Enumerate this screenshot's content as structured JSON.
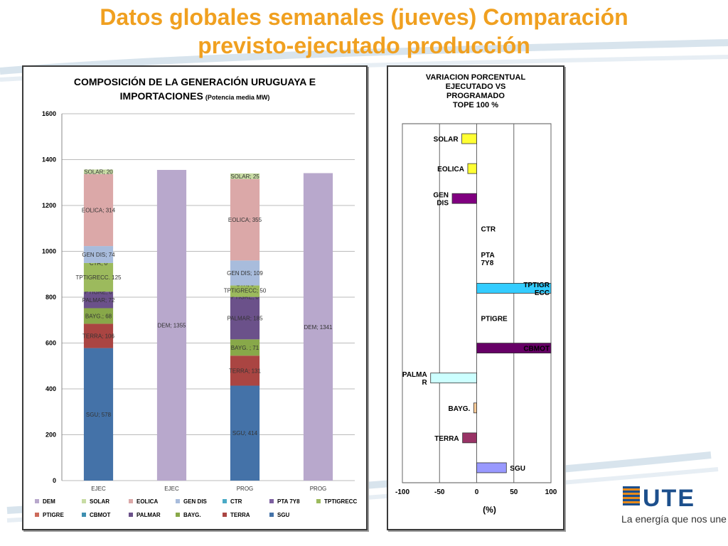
{
  "slide": {
    "title_line1": "Datos globales semanales  (jueves) Comparación",
    "title_line2": "previsto-ejecutado producción",
    "tagline": "La energía que nos une",
    "logo_text": "UTE",
    "colors": {
      "title": "#f0a020",
      "logo_blue": "#1c4f8c",
      "logo_orange": "#e88a1a"
    }
  },
  "chart_data": [
    {
      "type": "bar",
      "stacked": true,
      "title_line1": "COMPOSICIÓN DE LA GENERACIÓN URUGUAYA E",
      "title_line2_main": "IMPORTACIONES",
      "title_line2_sub": "(Potencia media MW)",
      "categories": [
        "EJEC",
        "EJEC",
        "PROG",
        "PROG"
      ],
      "ylim": [
        0,
        1600
      ],
      "yticks": [
        0,
        200,
        400,
        600,
        800,
        1000,
        1200,
        1400,
        1600
      ],
      "grid": true,
      "legend_position": "bottom",
      "series": [
        {
          "name": "SGU",
          "color": "#4472a8",
          "values": [
            578,
            null,
            414,
            null
          ],
          "labels": [
            "SGU; 578",
            null,
            "SGU; 414",
            null
          ]
        },
        {
          "name": "TERRA",
          "color": "#aa4542",
          "values": [
            106,
            null,
            131,
            null
          ],
          "labels": [
            "TERRA; 106",
            null,
            "TERRA; 131",
            null
          ]
        },
        {
          "name": "BAYG.",
          "color": "#88a849",
          "values": [
            68,
            null,
            71,
            null
          ],
          "labels": [
            "BAYG.; 68",
            null,
            "BAYG. ; 71",
            null
          ]
        },
        {
          "name": "PALMAR",
          "color": "#6b518a",
          "values": [
            72,
            null,
            185,
            null
          ],
          "labels": [
            "PALMAR; 72",
            null,
            "PALMAR; 185",
            null
          ]
        },
        {
          "name": "CBMOT",
          "color": "#3e8fb0",
          "values": [
            0,
            null,
            0,
            null
          ],
          "labels": [
            null,
            null,
            null,
            null
          ]
        },
        {
          "name": "PTIGRE",
          "color": "#cc6a5a",
          "values": [
            0,
            null,
            0,
            null
          ],
          "labels": [
            "PTIGRE; 0",
            null,
            "PTIGRE; 0",
            null
          ]
        },
        {
          "name": "TPTIGRECC",
          "color": "#9cba5d",
          "values": [
            125,
            null,
            50,
            null
          ],
          "labels": [
            "TPTIGRECC. 125",
            null,
            "TPTIGRECC; 50",
            null
          ]
        },
        {
          "name": "PTA 7Y8",
          "color": "#7d60a0",
          "values": [
            0,
            null,
            0,
            null
          ],
          "labels": [
            null,
            null,
            null,
            null
          ]
        },
        {
          "name": "CTR",
          "color": "#4aaac6",
          "values": [
            0,
            null,
            0,
            null
          ],
          "labels": [
            "CTR; 0",
            null,
            "CTR; 0",
            null
          ]
        },
        {
          "name": "GEN DIS",
          "color": "#a8bcdc",
          "values": [
            74,
            null,
            109,
            null
          ],
          "labels": [
            "GEN DIS; 74",
            null,
            "GEN DIS; 109",
            null
          ]
        },
        {
          "name": "EOLICA",
          "color": "#dba8a8",
          "values": [
            314,
            null,
            355,
            null
          ],
          "labels": [
            "EOLICA; 314",
            null,
            "EOLICA; 355",
            null
          ]
        },
        {
          "name": "SOLAR",
          "color": "#c8dca4",
          "values": [
            20,
            null,
            25,
            null
          ],
          "labels": [
            "SOLAR; 20",
            null,
            "SOLAR; 25",
            null
          ]
        },
        {
          "name": "DEM",
          "color": "#b8a8cc",
          "values": [
            null,
            1355,
            null,
            1341
          ],
          "labels": [
            null,
            "DEM; 1355",
            null,
            "DEM; 1341"
          ]
        }
      ],
      "legend_order": [
        "DEM",
        "SOLAR",
        "EOLICA",
        "GEN DIS",
        "CTR",
        "PTA 7Y8",
        "TPTIGRECC",
        "PTIGRE",
        "CBMOT",
        "PALMAR",
        "BAYG.",
        "TERRA",
        "SGU"
      ]
    },
    {
      "type": "bar",
      "orientation": "horizontal",
      "title": [
        "VARIACION  PORCENTUAL",
        "EJECUTADO VS",
        "PROGRAMADO",
        "TOPE 100 %"
      ],
      "xlabel": "(%)",
      "xlim": [
        -100,
        100
      ],
      "xticks": [
        -100,
        -50,
        0,
        50,
        100
      ],
      "grid": true,
      "categories": [
        {
          "name": "SOLAR",
          "label_lines": [
            "SOLAR"
          ],
          "value": -20,
          "color": "#ffff33"
        },
        {
          "name": "EOLICA",
          "label_lines": [
            "EOLICA"
          ],
          "value": -12,
          "color": "#ffff33"
        },
        {
          "name": "GEN DIS",
          "label_lines": [
            "GEN",
            "DIS"
          ],
          "value": -33,
          "color": "#800080"
        },
        {
          "name": "CTR",
          "label_lines": [
            "CTR"
          ],
          "value": 0,
          "color": "#6699cc"
        },
        {
          "name": "PTA 7Y8",
          "label_lines": [
            "PTA",
            "7Y8"
          ],
          "value": 0,
          "color": "#6699cc"
        },
        {
          "name": "TPTIGRECC",
          "label_lines": [
            "TPTIGR",
            "ECC"
          ],
          "value": 100,
          "color": "#33ccff"
        },
        {
          "name": "PTIGRE",
          "label_lines": [
            "PTIGRE"
          ],
          "value": 0,
          "color": "#6699cc"
        },
        {
          "name": "CBMOT",
          "label_lines": [
            "CBMOT"
          ],
          "value": 100,
          "color": "#660066"
        },
        {
          "name": "PALMAR",
          "label_lines": [
            "PALMA",
            "R"
          ],
          "value": -62,
          "color": "#ccffff"
        },
        {
          "name": "BAYG.",
          "label_lines": [
            "BAYG."
          ],
          "value": -4,
          "color": "#ffcc99"
        },
        {
          "name": "TERRA",
          "label_lines": [
            "TERRA"
          ],
          "value": -19,
          "color": "#993366"
        },
        {
          "name": "SGU",
          "label_lines": [
            "SGU"
          ],
          "value": 40,
          "color": "#9999ff"
        }
      ]
    }
  ]
}
